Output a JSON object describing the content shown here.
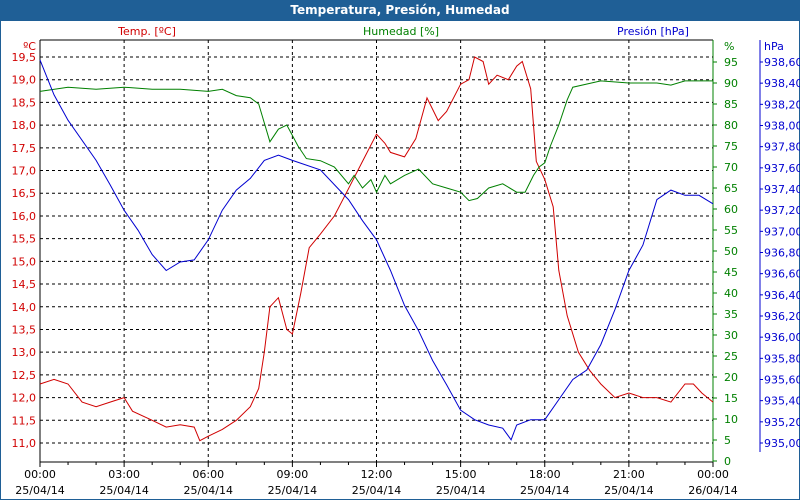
{
  "title": "Temperatura, Presión, Humedad",
  "chart_data": {
    "type": "line",
    "title": "Temperatura, Presión, Humedad",
    "x_unit": "hours",
    "x_ticks": [
      {
        "h": 0,
        "time": "00:00",
        "date": "25/04/14"
      },
      {
        "h": 3,
        "time": "03:00",
        "date": "25/04/14"
      },
      {
        "h": 6,
        "time": "06:00",
        "date": "25/04/14"
      },
      {
        "h": 9,
        "time": "09:00",
        "date": "25/04/14"
      },
      {
        "h": 12,
        "time": "12:00",
        "date": "25/04/14"
      },
      {
        "h": 15,
        "time": "15:00",
        "date": "25/04/14"
      },
      {
        "h": 18,
        "time": "18:00",
        "date": "25/04/14"
      },
      {
        "h": 21,
        "time": "21:00",
        "date": "25/04/14"
      },
      {
        "h": 24,
        "time": "00:00",
        "date": "26/04/14"
      }
    ],
    "axes": {
      "temp": {
        "label": "Temp. [ºC]",
        "unit": "ºC",
        "color": "#d00000",
        "ylim": [
          11.0,
          19.5
        ],
        "ticks": [
          "19,5",
          "19,0",
          "18,5",
          "18,0",
          "17,5",
          "17,0",
          "16,5",
          "16,0",
          "15,5",
          "15,0",
          "14,5",
          "14,0",
          "13,5",
          "13,0",
          "12,5",
          "12,0",
          "11,5",
          "11,0"
        ]
      },
      "hum": {
        "label": "Humedad [%]",
        "unit": "%",
        "color": "#008000",
        "ylim": [
          0,
          95
        ],
        "ticks": [
          "95",
          "90",
          "85",
          "80",
          "75",
          "70",
          "65",
          "60",
          "55",
          "50",
          "45",
          "40",
          "35",
          "30",
          "25",
          "20",
          "15",
          "10",
          "5",
          "0"
        ]
      },
      "pres": {
        "label": "Presión [hPa]",
        "unit": "hPa",
        "color": "#0000d0",
        "ylim": [
          935.0,
          938.6
        ],
        "ticks": [
          "938,60",
          "938,40",
          "938,20",
          "938,00",
          "937,80",
          "937,60",
          "937,40",
          "937,20",
          "937,00",
          "936,80",
          "936,60",
          "936,40",
          "936,20",
          "936,00",
          "935,80",
          "935,60",
          "935,40",
          "935,20",
          "935,00"
        ]
      }
    },
    "series": [
      {
        "name": "Temp. [ºC]",
        "axis": "temp",
        "color": "#d00000",
        "x": [
          0,
          0.5,
          1,
          1.5,
          2,
          2.5,
          3,
          3.3,
          4,
          4.5,
          5,
          5.5,
          5.7,
          6,
          6.5,
          7,
          7.5,
          7.8,
          8,
          8.2,
          8.5,
          8.8,
          9,
          9.3,
          9.6,
          10,
          10.5,
          11,
          11.5,
          12,
          12.3,
          12.5,
          13,
          13.4,
          13.8,
          14.2,
          14.5,
          15,
          15.3,
          15.5,
          15.8,
          16,
          16.3,
          16.7,
          17,
          17.2,
          17.5,
          17.7,
          18,
          18.3,
          18.5,
          18.8,
          19.2,
          19.6,
          20,
          20.5,
          21,
          21.5,
          22,
          22.5,
          23,
          23.3,
          23.6,
          24
        ],
        "y": [
          12.3,
          12.4,
          12.3,
          11.9,
          11.8,
          11.9,
          12.0,
          11.7,
          11.5,
          11.35,
          11.4,
          11.35,
          11.05,
          11.15,
          11.3,
          11.5,
          11.8,
          12.2,
          13.0,
          14.0,
          14.2,
          13.5,
          13.4,
          14.3,
          15.3,
          15.6,
          16.0,
          16.6,
          17.2,
          17.8,
          17.6,
          17.4,
          17.3,
          17.7,
          18.6,
          18.1,
          18.3,
          18.9,
          19.0,
          19.5,
          19.4,
          18.9,
          19.1,
          19.0,
          19.3,
          19.4,
          18.8,
          17.2,
          16.8,
          16.2,
          14.8,
          13.8,
          13.0,
          12.6,
          12.3,
          12.0,
          12.1,
          12.0,
          12.0,
          11.9,
          12.3,
          12.3,
          12.1,
          11.9
        ]
      },
      {
        "name": "Humedad [%]",
        "axis": "hum",
        "color": "#008000",
        "x": [
          0,
          1,
          2,
          3,
          4,
          5,
          6,
          6.5,
          7,
          7.5,
          7.8,
          8.2,
          8.5,
          8.8,
          9.2,
          9.5,
          10,
          10.5,
          11,
          11.2,
          11.5,
          11.8,
          12,
          12.3,
          12.5,
          13,
          13.5,
          14,
          14.5,
          15,
          15.3,
          15.6,
          16,
          16.5,
          17,
          17.3,
          17.6,
          17.8,
          18,
          18.2,
          18.5,
          18.8,
          19,
          20,
          21,
          22,
          22.5,
          23,
          24
        ],
        "y": [
          88,
          89,
          88.5,
          89,
          88.5,
          88.5,
          88,
          88.5,
          87,
          86.5,
          85,
          76,
          79,
          80,
          75,
          72,
          71.5,
          70,
          66,
          68,
          65,
          67,
          64,
          68,
          66,
          68,
          69.5,
          66,
          65,
          64,
          62,
          62.5,
          65,
          66,
          64,
          64,
          68,
          70,
          71,
          75,
          80,
          86,
          89,
          90.5,
          90,
          90,
          89.5,
          90.5,
          90.5
        ]
      },
      {
        "name": "Presión [hPa]",
        "axis": "pres",
        "color": "#0000d0",
        "x": [
          0,
          0.5,
          1,
          2,
          2.5,
          3,
          3.5,
          4,
          4.5,
          5,
          5.5,
          6,
          6.5,
          7,
          7.5,
          8,
          8.5,
          9,
          10,
          11,
          11.5,
          12,
          12.5,
          13,
          13.5,
          14,
          14.5,
          15,
          15.5,
          16,
          16.5,
          16.8,
          17,
          17.5,
          18,
          18.5,
          19,
          19.5,
          20,
          20.5,
          21,
          21.5,
          22,
          22.5,
          23,
          23.5,
          24
        ],
        "y": [
          938.62,
          938.29,
          938.05,
          937.67,
          937.44,
          937.2,
          937.01,
          936.78,
          936.63,
          936.71,
          936.73,
          936.92,
          937.2,
          937.39,
          937.5,
          937.67,
          937.72,
          937.67,
          937.58,
          937.3,
          937.1,
          936.92,
          936.63,
          936.3,
          936.06,
          935.78,
          935.55,
          935.31,
          935.22,
          935.17,
          935.14,
          935.03,
          935.17,
          935.22,
          935.22,
          935.41,
          935.6,
          935.69,
          935.93,
          936.26,
          936.63,
          936.87,
          937.3,
          937.39,
          937.34,
          937.34,
          937.26
        ]
      }
    ]
  }
}
